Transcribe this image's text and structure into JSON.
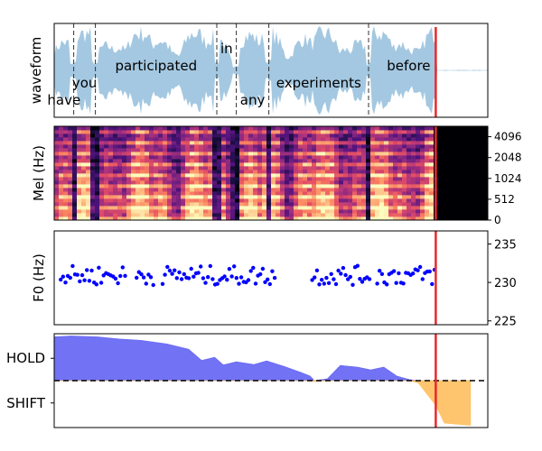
{
  "chart_data": [
    {
      "type": "area",
      "panel": "waveform",
      "ylabel": "waveform",
      "xlim": [
        0,
        10
      ],
      "words": [
        {
          "text": "have",
          "start": 0.0,
          "end": 0.45,
          "label_row": "low"
        },
        {
          "text": "you",
          "start": 0.45,
          "end": 0.95,
          "label_row": "mid"
        },
        {
          "text": "participated",
          "start": 0.95,
          "end": 3.75,
          "label_row": "high"
        },
        {
          "text": "in",
          "start": 3.75,
          "end": 4.2,
          "label_row": "top"
        },
        {
          "text": "any",
          "start": 4.2,
          "end": 4.95,
          "label_row": "low"
        },
        {
          "text": "experiments",
          "start": 4.95,
          "end": 7.25,
          "label_row": "mid"
        },
        {
          "text": "before",
          "start": 7.25,
          "end": 9.1,
          "label_row": "high"
        }
      ],
      "cursor": 8.8,
      "speech_end": 8.8,
      "colors": {
        "fill": "#a4c8e1",
        "boundary": "#333333",
        "cursor": "#e8292b"
      }
    },
    {
      "type": "heatmap",
      "panel": "mel",
      "ylabel": "Mel (Hz)",
      "yticks": [
        "0",
        "512",
        "1024",
        "2048",
        "4096"
      ],
      "xlim": [
        0,
        10
      ],
      "speech_end": 8.8,
      "cursor": 8.8,
      "colormap": "magma"
    },
    {
      "type": "scatter",
      "panel": "f0",
      "ylabel": "F0 (Hz)",
      "ylim": [
        224.5,
        236.7
      ],
      "yticks": [
        "225",
        "230",
        "235"
      ],
      "xlim": [
        0,
        10
      ],
      "voiced_segments": [
        [
          0.15,
          1.65
        ],
        [
          1.9,
          2.3
        ],
        [
          2.5,
          5.1
        ],
        [
          5.95,
          7.3
        ],
        [
          7.45,
          8.8
        ]
      ],
      "mean": 230.9,
      "spread": 0.9,
      "cursor": 8.8,
      "colors": {
        "points": "#0000ff",
        "cursor": "#e8292b"
      }
    },
    {
      "type": "area",
      "panel": "turn",
      "yticks": [
        "HOLD",
        "SHIFT"
      ],
      "ylim": [
        -1.05,
        1.05
      ],
      "xlim": [
        0,
        10
      ],
      "hold_values": [
        [
          0.0,
          0.98
        ],
        [
          0.4,
          1.0
        ],
        [
          1.0,
          0.98
        ],
        [
          1.5,
          0.93
        ],
        [
          2.0,
          0.9
        ],
        [
          2.6,
          0.82
        ],
        [
          3.1,
          0.7
        ],
        [
          3.4,
          0.45
        ],
        [
          3.7,
          0.52
        ],
        [
          3.9,
          0.35
        ],
        [
          4.2,
          0.42
        ],
        [
          4.6,
          0.36
        ],
        [
          4.9,
          0.44
        ],
        [
          5.3,
          0.32
        ],
        [
          5.7,
          0.18
        ],
        [
          5.9,
          0.1
        ],
        [
          6.0,
          -0.02
        ],
        [
          6.3,
          0.04
        ],
        [
          6.6,
          0.34
        ],
        [
          7.0,
          0.3
        ],
        [
          7.3,
          0.24
        ],
        [
          7.6,
          0.3
        ],
        [
          7.9,
          0.1
        ],
        [
          8.2,
          0.02
        ],
        [
          8.4,
          -0.05
        ],
        [
          8.8,
          -0.55
        ],
        [
          9.0,
          -0.95
        ],
        [
          9.6,
          -1.0
        ]
      ],
      "threshold": 0.0,
      "cursor": 8.8,
      "colors": {
        "hold": "#6a6af4",
        "shift": "#ffc166",
        "cursor": "#e8292b",
        "threshold": "#000000"
      }
    }
  ]
}
